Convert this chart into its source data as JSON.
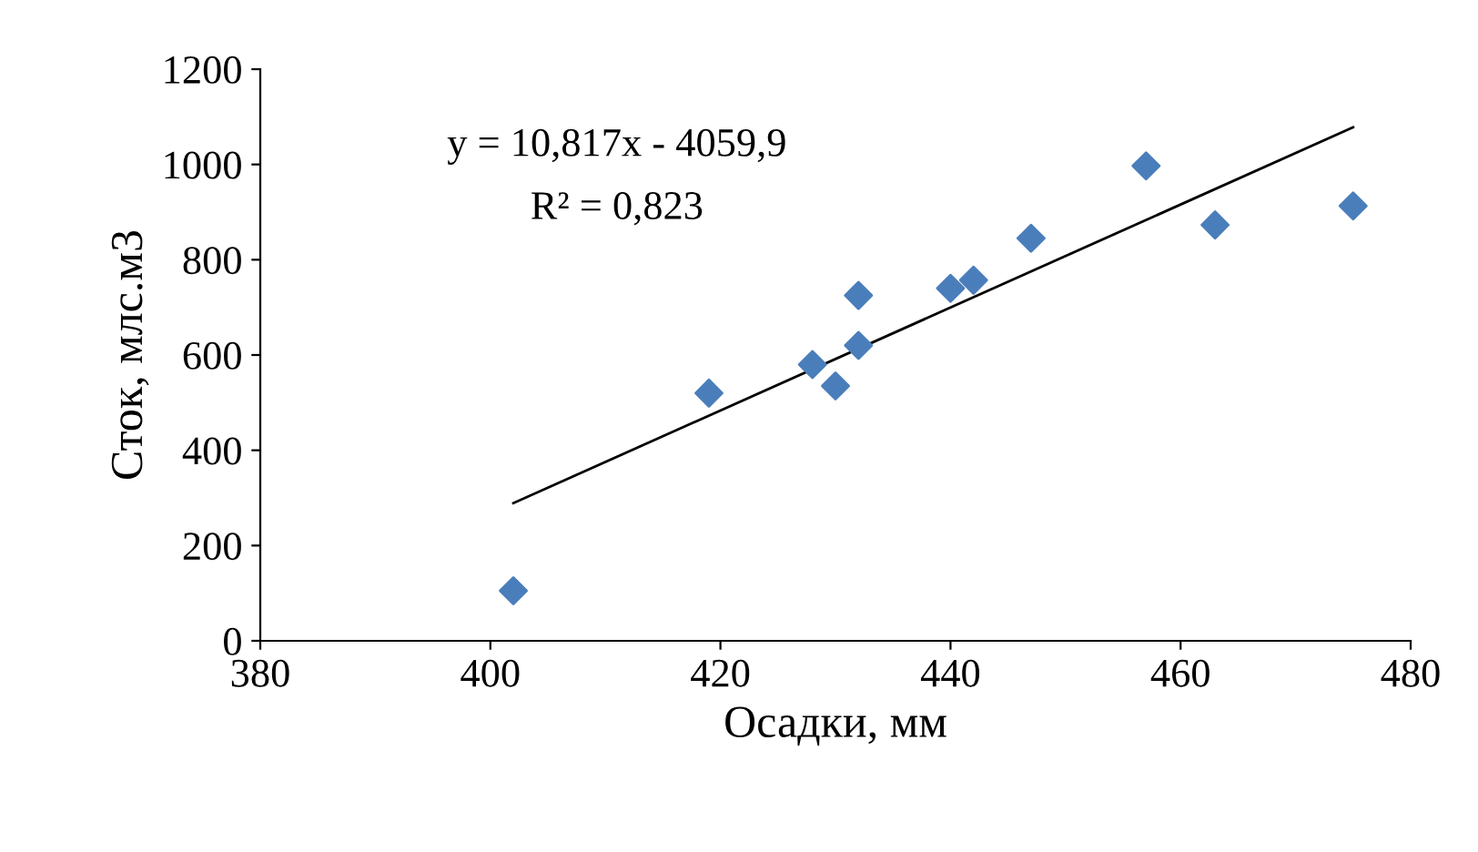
{
  "chart_data": {
    "type": "scatter",
    "xlabel": "Осадки, мм",
    "ylabel": "Сток, млс.м3",
    "xlim": [
      380,
      480
    ],
    "xticks": [
      380,
      400,
      420,
      440,
      460,
      480
    ],
    "ylim": [
      0,
      1200
    ],
    "yticks": [
      0,
      200,
      400,
      600,
      800,
      1000,
      1200
    ],
    "grid": false,
    "series": [
      {
        "marker": "diamond",
        "color": "#4a7ebb",
        "x": [
          402,
          419,
          428,
          430,
          432,
          432,
          440,
          442,
          447,
          457,
          463,
          475
        ],
        "values": [
          105,
          520,
          580,
          535,
          725,
          620,
          740,
          757,
          845,
          997,
          873,
          913
        ]
      },
      {
        "type": "line",
        "color": "#000000",
        "x": [
          402,
          475
        ],
        "values": [
          289,
          1078
        ],
        "line_style": "solid",
        "marker": "none"
      }
    ],
    "annotations": [
      {
        "text": "y = 10,817x - 4059,9"
      },
      {
        "text": "R² = 0,823"
      }
    ]
  }
}
